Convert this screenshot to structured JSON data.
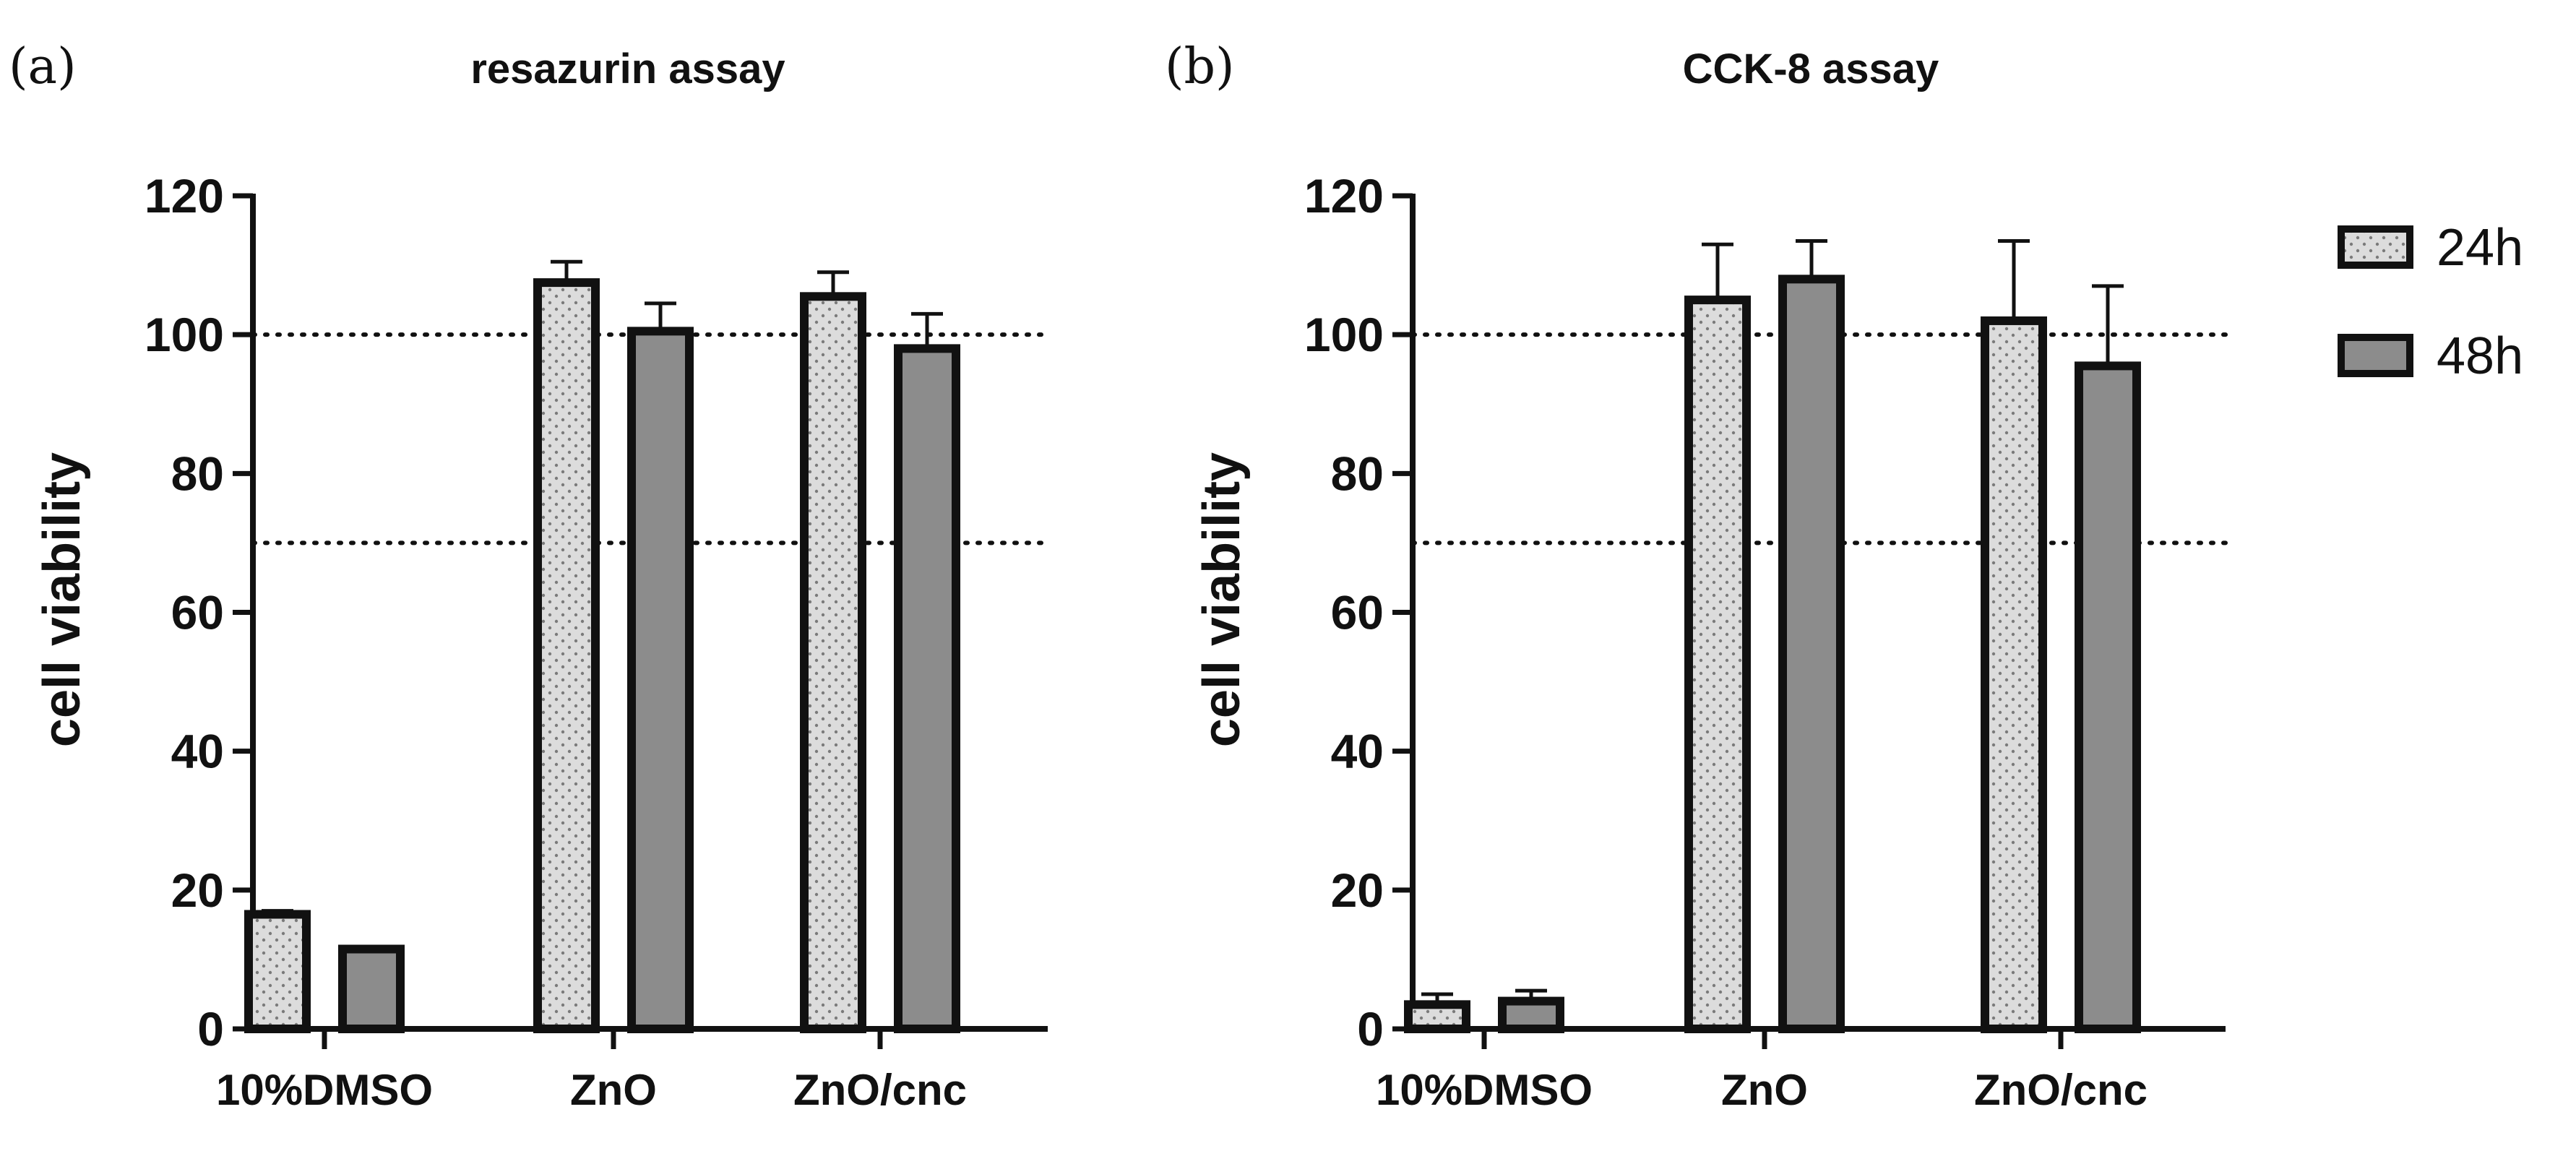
{
  "legend": [
    {
      "label": "24h",
      "pattern": "dotted",
      "fill": "#dcdcdc"
    },
    {
      "label": "48h",
      "pattern": "solid",
      "fill": "#8c8c8c"
    }
  ],
  "chart_data": [
    {
      "panel": "(a)",
      "type": "bar",
      "title": "resazurin assay",
      "xlabel": "",
      "ylabel": "cell viability",
      "ylim": [
        0,
        120
      ],
      "yticks": [
        0,
        20,
        40,
        60,
        80,
        100,
        120
      ],
      "reference_lines": [
        100,
        70
      ],
      "categories": [
        "10%DMSO",
        "ZnO",
        "ZnO/cnc"
      ],
      "series": [
        {
          "name": "24h",
          "values": [
            16.5,
            107.5,
            105.5
          ],
          "errors": [
            0.5,
            3,
            3.5
          ]
        },
        {
          "name": "48h",
          "values": [
            11.5,
            100.5,
            98
          ],
          "errors": [
            0.3,
            4,
            5
          ]
        }
      ]
    },
    {
      "panel": "(b)",
      "type": "bar",
      "title": "CCK-8 assay",
      "xlabel": "",
      "ylabel": "cell viability",
      "ylim": [
        0,
        120
      ],
      "yticks": [
        0,
        20,
        40,
        60,
        80,
        100,
        120
      ],
      "reference_lines": [
        100,
        70
      ],
      "categories": [
        "10%DMSO",
        "ZnO",
        "ZnO/cnc"
      ],
      "series": [
        {
          "name": "24h",
          "values": [
            3.5,
            105,
            102
          ],
          "errors": [
            1.5,
            8,
            11.5
          ]
        },
        {
          "name": "48h",
          "values": [
            4,
            108,
            95.5
          ],
          "errors": [
            1.5,
            5.5,
            11.5
          ]
        }
      ]
    }
  ]
}
